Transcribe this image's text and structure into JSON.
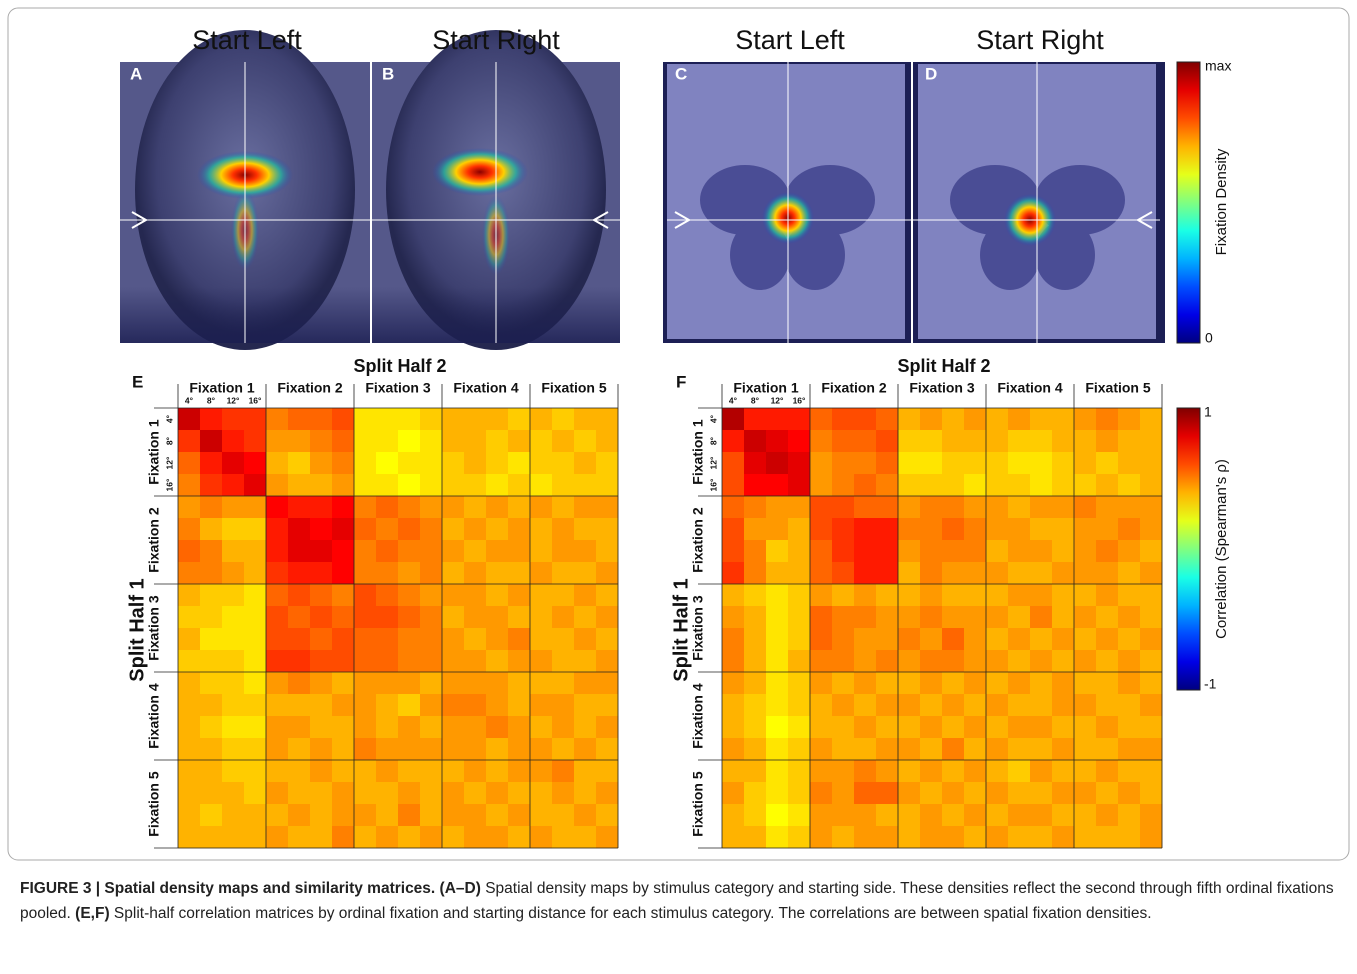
{
  "density_maps": {
    "panels": [
      {
        "title": "Start Left",
        "letter": "A"
      },
      {
        "title": "Start Right",
        "letter": "B"
      },
      {
        "title": "Start Left",
        "letter": "C"
      },
      {
        "title": "Start Right",
        "letter": "D"
      }
    ],
    "colorbar": {
      "label": "Fixation Density",
      "top_label": "max",
      "bottom_label": "0"
    }
  },
  "chart_data": [
    {
      "type": "heatmap",
      "panel": "E",
      "title": "Split Half 2",
      "ylabel": "Split Half 1",
      "groups": [
        "Fixation 1",
        "Fixation 2",
        "Fixation 3",
        "Fixation 4",
        "Fixation 5"
      ],
      "subcategories": [
        "4°",
        "8°",
        "12°",
        "16°"
      ],
      "colormap": "jet",
      "zlim": [
        -1,
        1
      ],
      "values": [
        [
          0.85,
          0.7,
          0.65,
          0.65,
          0.5,
          0.55,
          0.55,
          0.6,
          0.3,
          0.3,
          0.3,
          0.35,
          0.4,
          0.4,
          0.4,
          0.35,
          0.4,
          0.35,
          0.4,
          0.4
        ],
        [
          0.65,
          0.85,
          0.7,
          0.65,
          0.45,
          0.45,
          0.5,
          0.55,
          0.3,
          0.3,
          0.25,
          0.3,
          0.4,
          0.4,
          0.35,
          0.4,
          0.35,
          0.4,
          0.35,
          0.4
        ],
        [
          0.55,
          0.7,
          0.8,
          0.75,
          0.4,
          0.35,
          0.45,
          0.5,
          0.3,
          0.25,
          0.3,
          0.3,
          0.35,
          0.4,
          0.35,
          0.3,
          0.35,
          0.35,
          0.4,
          0.35
        ],
        [
          0.5,
          0.65,
          0.7,
          0.8,
          0.45,
          0.4,
          0.4,
          0.45,
          0.3,
          0.3,
          0.25,
          0.3,
          0.35,
          0.35,
          0.3,
          0.35,
          0.3,
          0.35,
          0.35,
          0.35
        ],
        [
          0.45,
          0.5,
          0.45,
          0.45,
          0.75,
          0.7,
          0.7,
          0.75,
          0.5,
          0.55,
          0.5,
          0.45,
          0.45,
          0.4,
          0.45,
          0.4,
          0.45,
          0.4,
          0.45,
          0.45
        ],
        [
          0.5,
          0.4,
          0.35,
          0.35,
          0.7,
          0.8,
          0.75,
          0.8,
          0.55,
          0.5,
          0.55,
          0.5,
          0.4,
          0.45,
          0.4,
          0.45,
          0.4,
          0.45,
          0.4,
          0.4
        ],
        [
          0.55,
          0.5,
          0.4,
          0.4,
          0.7,
          0.8,
          0.8,
          0.75,
          0.5,
          0.55,
          0.5,
          0.5,
          0.45,
          0.4,
          0.45,
          0.45,
          0.4,
          0.45,
          0.45,
          0.4
        ],
        [
          0.5,
          0.5,
          0.45,
          0.4,
          0.65,
          0.7,
          0.7,
          0.75,
          0.5,
          0.5,
          0.45,
          0.5,
          0.4,
          0.45,
          0.4,
          0.4,
          0.45,
          0.4,
          0.4,
          0.45
        ],
        [
          0.4,
          0.35,
          0.35,
          0.3,
          0.55,
          0.6,
          0.55,
          0.5,
          0.6,
          0.55,
          0.5,
          0.45,
          0.45,
          0.45,
          0.4,
          0.45,
          0.4,
          0.4,
          0.45,
          0.4
        ],
        [
          0.35,
          0.35,
          0.3,
          0.3,
          0.6,
          0.55,
          0.6,
          0.55,
          0.6,
          0.6,
          0.55,
          0.5,
          0.4,
          0.45,
          0.45,
          0.4,
          0.4,
          0.45,
          0.4,
          0.45
        ],
        [
          0.4,
          0.3,
          0.3,
          0.3,
          0.6,
          0.6,
          0.55,
          0.6,
          0.55,
          0.55,
          0.5,
          0.5,
          0.45,
          0.4,
          0.45,
          0.5,
          0.4,
          0.4,
          0.45,
          0.4
        ],
        [
          0.35,
          0.35,
          0.35,
          0.3,
          0.65,
          0.65,
          0.6,
          0.6,
          0.55,
          0.55,
          0.5,
          0.5,
          0.45,
          0.45,
          0.4,
          0.45,
          0.45,
          0.4,
          0.4,
          0.45
        ],
        [
          0.4,
          0.35,
          0.35,
          0.3,
          0.45,
          0.5,
          0.45,
          0.4,
          0.45,
          0.45,
          0.45,
          0.4,
          0.45,
          0.45,
          0.45,
          0.4,
          0.4,
          0.4,
          0.45,
          0.45
        ],
        [
          0.4,
          0.4,
          0.35,
          0.35,
          0.4,
          0.4,
          0.4,
          0.45,
          0.45,
          0.4,
          0.35,
          0.45,
          0.5,
          0.5,
          0.45,
          0.4,
          0.45,
          0.45,
          0.4,
          0.4
        ],
        [
          0.4,
          0.35,
          0.3,
          0.3,
          0.45,
          0.45,
          0.4,
          0.4,
          0.45,
          0.4,
          0.45,
          0.4,
          0.45,
          0.45,
          0.5,
          0.45,
          0.4,
          0.45,
          0.4,
          0.45
        ],
        [
          0.4,
          0.4,
          0.35,
          0.35,
          0.45,
          0.4,
          0.45,
          0.4,
          0.5,
          0.45,
          0.45,
          0.45,
          0.45,
          0.45,
          0.4,
          0.45,
          0.45,
          0.4,
          0.45,
          0.4
        ],
        [
          0.4,
          0.4,
          0.35,
          0.35,
          0.4,
          0.4,
          0.45,
          0.4,
          0.4,
          0.45,
          0.4,
          0.4,
          0.4,
          0.45,
          0.4,
          0.45,
          0.45,
          0.5,
          0.4,
          0.4
        ],
        [
          0.4,
          0.4,
          0.4,
          0.35,
          0.45,
          0.4,
          0.4,
          0.45,
          0.4,
          0.4,
          0.45,
          0.4,
          0.45,
          0.4,
          0.45,
          0.4,
          0.4,
          0.45,
          0.4,
          0.45
        ],
        [
          0.4,
          0.35,
          0.4,
          0.4,
          0.4,
          0.45,
          0.4,
          0.45,
          0.45,
          0.4,
          0.5,
          0.4,
          0.45,
          0.45,
          0.4,
          0.45,
          0.4,
          0.4,
          0.45,
          0.4
        ],
        [
          0.4,
          0.4,
          0.4,
          0.4,
          0.45,
          0.4,
          0.4,
          0.5,
          0.4,
          0.45,
          0.4,
          0.45,
          0.4,
          0.45,
          0.45,
          0.4,
          0.45,
          0.4,
          0.4,
          0.45
        ]
      ]
    },
    {
      "type": "heatmap",
      "panel": "F",
      "title": "Split Half 2",
      "ylabel": "Split Half 1",
      "groups": [
        "Fixation 1",
        "Fixation 2",
        "Fixation 3",
        "Fixation 4",
        "Fixation 5"
      ],
      "subcategories": [
        "4°",
        "8°",
        "12°",
        "16°"
      ],
      "colormap": "jet",
      "zlim": [
        -1,
        1
      ],
      "zticks": [
        1,
        -1
      ],
      "colorbar_label": "Correlation (Spearman's ρ)",
      "values": [
        [
          0.9,
          0.7,
          0.7,
          0.7,
          0.55,
          0.6,
          0.6,
          0.55,
          0.4,
          0.45,
          0.4,
          0.45,
          0.4,
          0.45,
          0.4,
          0.4,
          0.45,
          0.5,
          0.45,
          0.4
        ],
        [
          0.7,
          0.85,
          0.8,
          0.75,
          0.5,
          0.55,
          0.55,
          0.6,
          0.35,
          0.35,
          0.4,
          0.4,
          0.4,
          0.35,
          0.35,
          0.4,
          0.4,
          0.45,
          0.4,
          0.4
        ],
        [
          0.6,
          0.8,
          0.85,
          0.8,
          0.45,
          0.5,
          0.5,
          0.55,
          0.3,
          0.3,
          0.35,
          0.35,
          0.35,
          0.3,
          0.3,
          0.35,
          0.4,
          0.35,
          0.4,
          0.4
        ],
        [
          0.6,
          0.75,
          0.75,
          0.8,
          0.45,
          0.5,
          0.55,
          0.5,
          0.35,
          0.35,
          0.35,
          0.3,
          0.35,
          0.35,
          0.3,
          0.35,
          0.35,
          0.4,
          0.35,
          0.4
        ],
        [
          0.55,
          0.5,
          0.45,
          0.45,
          0.6,
          0.6,
          0.55,
          0.55,
          0.45,
          0.5,
          0.5,
          0.45,
          0.45,
          0.4,
          0.45,
          0.45,
          0.5,
          0.45,
          0.45,
          0.45
        ],
        [
          0.6,
          0.45,
          0.45,
          0.4,
          0.6,
          0.65,
          0.7,
          0.7,
          0.5,
          0.5,
          0.55,
          0.5,
          0.45,
          0.45,
          0.4,
          0.4,
          0.45,
          0.45,
          0.5,
          0.45
        ],
        [
          0.6,
          0.5,
          0.35,
          0.4,
          0.55,
          0.65,
          0.7,
          0.7,
          0.45,
          0.5,
          0.5,
          0.5,
          0.4,
          0.45,
          0.45,
          0.4,
          0.45,
          0.5,
          0.45,
          0.4
        ],
        [
          0.65,
          0.5,
          0.4,
          0.4,
          0.55,
          0.6,
          0.7,
          0.7,
          0.4,
          0.5,
          0.45,
          0.45,
          0.45,
          0.4,
          0.4,
          0.45,
          0.45,
          0.45,
          0.4,
          0.45
        ],
        [
          0.4,
          0.35,
          0.3,
          0.35,
          0.45,
          0.4,
          0.45,
          0.4,
          0.4,
          0.45,
          0.4,
          0.4,
          0.4,
          0.45,
          0.45,
          0.4,
          0.4,
          0.45,
          0.4,
          0.4
        ],
        [
          0.45,
          0.4,
          0.3,
          0.35,
          0.55,
          0.5,
          0.5,
          0.45,
          0.45,
          0.5,
          0.45,
          0.45,
          0.45,
          0.4,
          0.5,
          0.4,
          0.45,
          0.4,
          0.45,
          0.4
        ],
        [
          0.5,
          0.4,
          0.3,
          0.35,
          0.55,
          0.5,
          0.45,
          0.45,
          0.5,
          0.45,
          0.55,
          0.45,
          0.4,
          0.45,
          0.4,
          0.45,
          0.4,
          0.45,
          0.4,
          0.45
        ],
        [
          0.5,
          0.4,
          0.3,
          0.4,
          0.5,
          0.5,
          0.45,
          0.5,
          0.45,
          0.5,
          0.5,
          0.45,
          0.45,
          0.4,
          0.45,
          0.4,
          0.45,
          0.4,
          0.45,
          0.4
        ],
        [
          0.45,
          0.4,
          0.3,
          0.35,
          0.45,
          0.4,
          0.45,
          0.4,
          0.4,
          0.45,
          0.4,
          0.45,
          0.4,
          0.45,
          0.4,
          0.45,
          0.4,
          0.4,
          0.45,
          0.4
        ],
        [
          0.4,
          0.35,
          0.3,
          0.35,
          0.4,
          0.45,
          0.4,
          0.45,
          0.45,
          0.4,
          0.45,
          0.4,
          0.45,
          0.4,
          0.4,
          0.45,
          0.45,
          0.4,
          0.4,
          0.45
        ],
        [
          0.4,
          0.35,
          0.25,
          0.3,
          0.4,
          0.4,
          0.45,
          0.4,
          0.4,
          0.45,
          0.4,
          0.45,
          0.4,
          0.45,
          0.45,
          0.4,
          0.4,
          0.45,
          0.4,
          0.4
        ],
        [
          0.45,
          0.4,
          0.3,
          0.35,
          0.45,
          0.4,
          0.4,
          0.45,
          0.45,
          0.4,
          0.5,
          0.4,
          0.45,
          0.4,
          0.4,
          0.45,
          0.4,
          0.4,
          0.45,
          0.45
        ],
        [
          0.4,
          0.4,
          0.3,
          0.35,
          0.45,
          0.45,
          0.5,
          0.45,
          0.4,
          0.45,
          0.4,
          0.45,
          0.4,
          0.35,
          0.45,
          0.4,
          0.4,
          0.45,
          0.4,
          0.4
        ],
        [
          0.45,
          0.35,
          0.3,
          0.35,
          0.5,
          0.45,
          0.55,
          0.55,
          0.45,
          0.4,
          0.45,
          0.4,
          0.45,
          0.4,
          0.4,
          0.45,
          0.45,
          0.4,
          0.45,
          0.4
        ],
        [
          0.4,
          0.35,
          0.25,
          0.3,
          0.45,
          0.45,
          0.45,
          0.4,
          0.4,
          0.45,
          0.4,
          0.45,
          0.4,
          0.45,
          0.45,
          0.4,
          0.4,
          0.45,
          0.4,
          0.45
        ],
        [
          0.4,
          0.4,
          0.3,
          0.35,
          0.45,
          0.4,
          0.45,
          0.45,
          0.4,
          0.45,
          0.45,
          0.4,
          0.45,
          0.4,
          0.4,
          0.45,
          0.4,
          0.4,
          0.4,
          0.45
        ]
      ]
    }
  ],
  "caption": [
    "FIGURE 3 | Spatial density maps and similarity matrices.",
    "(A–D)",
    "Spatial density maps by stimulus category and starting side. These densities reflect the second through fifth ordinal fixations pooled.",
    "(E,F)",
    "Split-half correlation matrices by ordinal fixation and starting distance for each stimulus category. The correlations are between spatial fixation densities."
  ]
}
